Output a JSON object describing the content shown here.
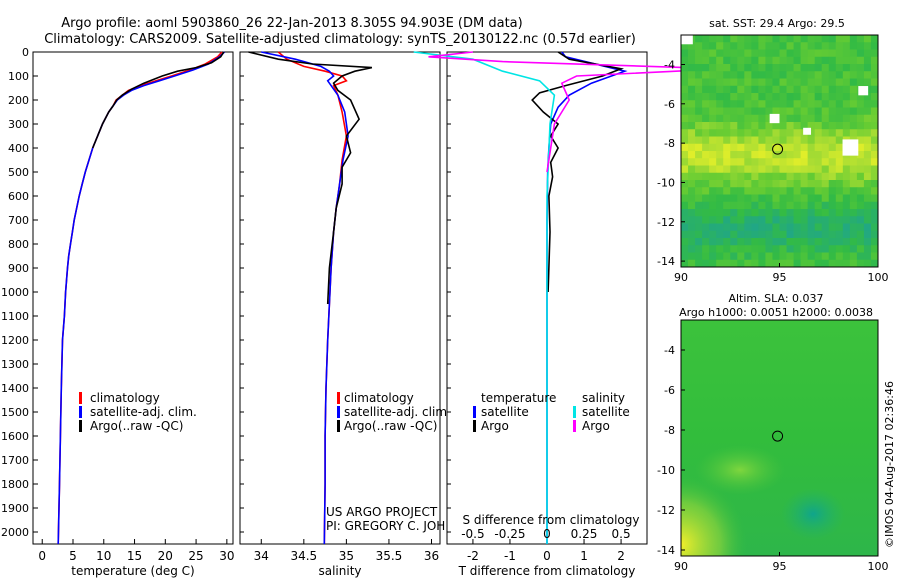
{
  "header": {
    "title_line1": "Argo profile: aoml 5903860_26 22-Jan-2013 8.305S 94.903E (DM data)",
    "title_line2": "Climatology: CARS2009. Satellite-adjusted climatology: synTS_20130122.nc (0.57d earlier)"
  },
  "colors": {
    "climatology": "#ff0000",
    "satellite": "#0000ff",
    "argo": "#000000",
    "salinity_satellite": "#00e5e5",
    "salinity_argo": "#ff00ff"
  },
  "footer": {
    "project": "US ARGO PROJECT",
    "pi": "PI: GREGORY C. JOHNSON",
    "stamp": "©IMOS 04-Aug-2017 02:36:46"
  },
  "chart_data": [
    {
      "type": "line",
      "id": "temperature",
      "xlabel": "temperature (deg C)",
      "ylabel": "",
      "xlim": [
        -1.5,
        31
      ],
      "ylim": [
        2050,
        0
      ],
      "xticks": [
        0,
        5,
        10,
        15,
        20,
        25,
        30
      ],
      "yticks": [
        0,
        100,
        200,
        300,
        400,
        500,
        600,
        700,
        800,
        900,
        1000,
        1100,
        1200,
        1300,
        1400,
        1500,
        1600,
        1700,
        1800,
        1900,
        2000
      ],
      "legend": [
        "climatology",
        "satellite-adj. clim.",
        "Argo(..raw -QC)"
      ],
      "series": [
        {
          "name": "climatology",
          "color": "#ff0000",
          "x": [
            29.2,
            28.5,
            26.5,
            24,
            21,
            18.5,
            16,
            14,
            13,
            12,
            11.5,
            10.8,
            9.8,
            9.0,
            8.2,
            7.6,
            7.0,
            6.5,
            6.0,
            5.6,
            5.2,
            4.9,
            4.6,
            4.3,
            4.1,
            3.8,
            3.6,
            3.3,
            3.1,
            2.95,
            2.8,
            2.6
          ],
          "y": [
            0,
            20,
            50,
            75,
            100,
            120,
            140,
            160,
            180,
            200,
            225,
            250,
            300,
            350,
            400,
            450,
            500,
            550,
            600,
            650,
            700,
            750,
            800,
            850,
            900,
            1000,
            1100,
            1200,
            1400,
            1600,
            1800,
            2050
          ]
        },
        {
          "name": "satellite-adj. clim.",
          "color": "#0000ff",
          "x": [
            29.6,
            28.8,
            27,
            24.5,
            21.5,
            19,
            16.5,
            14.5,
            13.2,
            12.2,
            11.5,
            10.8,
            9.8,
            9.0,
            8.2,
            7.6,
            7.0,
            6.5,
            6.0,
            5.6,
            5.2,
            4.9,
            4.6,
            4.3,
            4.1,
            3.8,
            3.6,
            3.3,
            3.1,
            2.95,
            2.8,
            2.6
          ],
          "y": [
            0,
            20,
            50,
            75,
            100,
            120,
            140,
            160,
            180,
            200,
            225,
            250,
            300,
            350,
            400,
            450,
            500,
            550,
            600,
            650,
            700,
            750,
            800,
            850,
            900,
            1000,
            1100,
            1200,
            1400,
            1600,
            1800,
            2050
          ]
        },
        {
          "name": "Argo(..raw -QC)",
          "color": "#000000",
          "x": [
            29.5,
            29.0,
            27.5,
            25,
            22,
            19.5,
            16.5,
            14.5,
            13.0,
            12.1,
            11.5,
            10.8,
            9.8,
            9.0,
            8.2
          ],
          "y": [
            0,
            20,
            45,
            65,
            80,
            100,
            130,
            155,
            180,
            200,
            225,
            250,
            300,
            350,
            400
          ]
        }
      ]
    },
    {
      "type": "line",
      "id": "salinity",
      "xlabel": "salinity",
      "ylabel": "",
      "xlim": [
        33.75,
        36.1
      ],
      "ylim": [
        2050,
        0
      ],
      "xticks": [
        34,
        34.5,
        35,
        35.5,
        36
      ],
      "legend": [
        "climatology",
        "satellite-adj. clim.",
        "Argo(..raw -QC)"
      ],
      "series": [
        {
          "name": "climatology",
          "color": "#ff0000",
          "x": [
            34.2,
            34.3,
            34.5,
            34.75,
            34.95,
            35.0,
            34.85,
            34.9,
            34.95,
            35.0,
            34.95,
            34.92,
            34.88,
            34.85,
            34.82,
            34.8,
            34.78,
            34.76,
            34.75,
            34.75,
            34.74
          ],
          "y": [
            0,
            30,
            60,
            80,
            100,
            120,
            140,
            180,
            250,
            350,
            450,
            550,
            650,
            750,
            900,
            1050,
            1200,
            1400,
            1600,
            1800,
            2050
          ]
        },
        {
          "name": "satellite-adj. clim.",
          "color": "#0000ff",
          "x": [
            34.0,
            34.4,
            34.7,
            34.8,
            34.85,
            34.78,
            34.82,
            34.9,
            34.98,
            35.02,
            34.96,
            34.92,
            34.88,
            34.85,
            34.82,
            34.8,
            34.78,
            34.76,
            34.75,
            34.75,
            34.74
          ],
          "y": [
            0,
            30,
            60,
            80,
            100,
            120,
            140,
            180,
            250,
            350,
            450,
            550,
            650,
            750,
            900,
            1050,
            1200,
            1400,
            1600,
            1800,
            2050
          ]
        },
        {
          "name": "Argo(..raw -QC)",
          "color": "#000000",
          "x": [
            33.85,
            34.2,
            34.6,
            35.3,
            35.1,
            34.95,
            34.85,
            34.9,
            35.05,
            35.15,
            35.0,
            35.05,
            34.95,
            34.95,
            34.88,
            34.85,
            34.8,
            34.78
          ],
          "y": [
            0,
            30,
            50,
            65,
            80,
            100,
            130,
            160,
            200,
            280,
            350,
            420,
            480,
            550,
            650,
            750,
            900,
            1050
          ]
        }
      ]
    },
    {
      "type": "line",
      "id": "differences",
      "xlabel": "T difference from climatology",
      "xlabel_top": "S difference from climatology",
      "xlim": [
        -2.7,
        2.7
      ],
      "ylim": [
        2050,
        0
      ],
      "xticks": [
        -2,
        -1,
        0,
        1,
        2
      ],
      "xticks_salinity": [
        -0.5,
        -0.25,
        0,
        0.25,
        0.5
      ],
      "legend_groups": {
        "temperature": {
          "title": "temperature",
          "items": [
            "satellite",
            "Argo"
          ]
        },
        "salinity": {
          "title": "salinity",
          "items": [
            "satellite",
            "Argo"
          ]
        }
      },
      "series": [
        {
          "name": "temperature satellite",
          "color": "#0000ff",
          "x": [
            0.4,
            0.5,
            2.1,
            1.2,
            0.6,
            0.3,
            0.1,
            0.05,
            0.02,
            0.0,
            0.0,
            0.0,
            0.0
          ],
          "y": [
            0,
            20,
            80,
            130,
            180,
            230,
            300,
            400,
            500,
            700,
            1000,
            1500,
            2050
          ]
        },
        {
          "name": "temperature Argo",
          "color": "#000000",
          "x": [
            0.3,
            0.6,
            2.0,
            1.5,
            0.5,
            -0.2,
            -0.4,
            -0.1,
            0.3,
            0.1,
            0.3,
            0.1,
            0.15,
            0.05,
            0.08,
            0.03
          ],
          "y": [
            0,
            30,
            70,
            100,
            140,
            170,
            200,
            250,
            300,
            350,
            400,
            460,
            520,
            600,
            750,
            1000
          ]
        },
        {
          "name": "salinity satellite",
          "color": "#00e5e5",
          "x": [
            -0.9,
            -0.5,
            -0.3,
            -0.05,
            0.05,
            0.02,
            0.0,
            0.0,
            0.0
          ],
          "y": [
            0,
            30,
            80,
            120,
            180,
            300,
            600,
            1200,
            2050
          ]
        },
        {
          "name": "salinity Argo",
          "color": "#ff00ff",
          "x": [
            -0.5,
            -0.8,
            -0.3,
            1.2,
            0.2,
            0.1,
            0.15,
            0.05,
            0.0
          ],
          "y": [
            0,
            20,
            40,
            70,
            100,
            130,
            200,
            300,
            500
          ]
        }
      ]
    },
    {
      "type": "heatmap",
      "id": "sst-map",
      "title": "sat. SST: 29.4 Argo: 29.5",
      "xlim": [
        90,
        100
      ],
      "ylim": [
        -14.3,
        -2.5
      ],
      "xticks": [
        90,
        95,
        100
      ],
      "yticks": [
        -4,
        -6,
        -8,
        -10,
        -12,
        -14
      ],
      "float_position": {
        "lon": 94.903,
        "lat": -8.305
      }
    },
    {
      "type": "heatmap",
      "id": "sla-map",
      "title": "Altim. SLA: 0.037",
      "subtitle": "Argo h1000: 0.0051 h2000: 0.0038",
      "xlim": [
        90,
        100
      ],
      "ylim": [
        -14.3,
        -2.5
      ],
      "xticks": [
        90,
        95,
        100
      ],
      "yticks": [
        -4,
        -6,
        -8,
        -10,
        -12,
        -14
      ],
      "float_position": {
        "lon": 94.903,
        "lat": -8.305
      }
    }
  ]
}
